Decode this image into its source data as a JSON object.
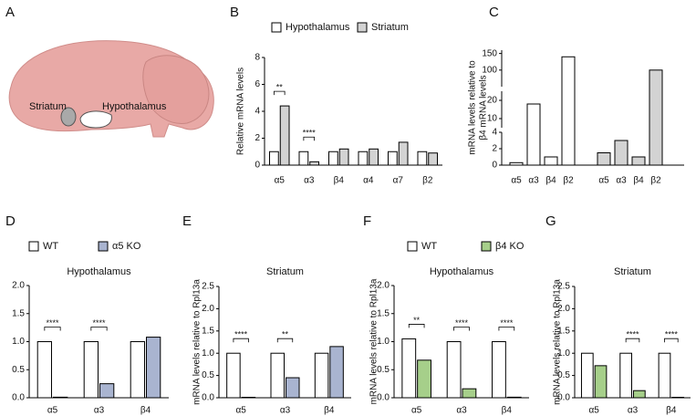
{
  "panel_labels": [
    "A",
    "B",
    "C",
    "D",
    "E",
    "F",
    "G"
  ],
  "brain_labels": [
    "Striatum",
    "Hypothalamus"
  ],
  "chart_data": [
    {
      "type": "bar",
      "ylabel": "Relative mRNA levels",
      "legend": "top",
      "categories": [
        "α5",
        "α3",
        "β4",
        "α4",
        "α7",
        "β2"
      ],
      "series": [
        {
          "name": "Hypothalamus",
          "color": "#ffffff",
          "values": [
            1,
            1,
            1,
            1,
            1,
            1
          ]
        },
        {
          "name": "Striatum",
          "color": "#d3d3d3",
          "values": [
            4.4,
            0.25,
            1.2,
            1.2,
            1.7,
            0.9
          ]
        }
      ],
      "ylim": [
        0,
        8
      ],
      "yticks": [
        0,
        2,
        4,
        6,
        8
      ],
      "significance": [
        "**",
        "****",
        null,
        null,
        null,
        null
      ]
    },
    {
      "type": "broken_bar",
      "ylabel_lines": [
        "mRNA levels relative to",
        "β4 mRNA levels"
      ],
      "categories": [
        "α5",
        "α3",
        "β4",
        "β2",
        "α5",
        "α3",
        "β4",
        "β2"
      ],
      "values": [
        0.3,
        18,
        1,
        140,
        1.5,
        3,
        1,
        100
      ],
      "colors": [
        "#ffffff",
        "#ffffff",
        "#ffffff",
        "#ffffff",
        "#d3d3d3",
        "#d3d3d3",
        "#d3d3d3",
        "#d3d3d3"
      ],
      "segments": [
        {
          "ylim": [
            0,
            4
          ],
          "yticks": [
            0,
            2,
            4
          ]
        },
        {
          "ylim": [
            5,
            25
          ],
          "yticks": [
            10,
            20
          ]
        },
        {
          "ylim": [
            50,
            160
          ],
          "yticks": [
            100,
            150
          ]
        }
      ]
    },
    {
      "type": "bar",
      "subtitle": "Hypothalamus",
      "legend": "top",
      "categories": [
        "α5",
        "α3",
        "β4"
      ],
      "series": [
        {
          "name": "WT",
          "color": "#ffffff",
          "values": [
            1,
            1,
            1
          ]
        },
        {
          "name": "α5 KO",
          "color": "#a9b4d0",
          "values": [
            0.01,
            0.25,
            1.08
          ]
        }
      ],
      "ylim": [
        0,
        2
      ],
      "yticks": [
        {
          "value": 0,
          "label": "0.0"
        },
        0.5,
        {
          "value": 1,
          "label": "1.0"
        },
        1.5,
        {
          "value": 2,
          "label": "2.0"
        }
      ],
      "significance": [
        "****",
        "****",
        null
      ]
    },
    {
      "type": "bar",
      "subtitle": "Striatum",
      "ylabel": "mRNA levels relative to Rpl13a",
      "categories": [
        "α5",
        "α3",
        "β4"
      ],
      "series": [
        {
          "color": "#ffffff",
          "values": [
            1,
            1,
            1
          ]
        },
        {
          "color": "#a9b4d0",
          "values": [
            0.01,
            0.45,
            1.15
          ]
        }
      ],
      "ylim": [
        0,
        2.5
      ],
      "yticks": [
        {
          "value": 0,
          "label": "0.0"
        },
        0.5,
        {
          "value": 1,
          "label": "1.0"
        },
        1.5,
        {
          "value": 2,
          "label": "2.0"
        },
        2.5
      ],
      "significance": [
        "****",
        "**",
        null
      ]
    },
    {
      "type": "bar",
      "subtitle": "Hypothalamus",
      "ylabel": "mRNA levels relative to Rpl13a",
      "legend": "top",
      "categories": [
        "α5",
        "α3",
        "β4"
      ],
      "series": [
        {
          "name": "WT",
          "color": "#ffffff",
          "values": [
            1.05,
            1,
            1
          ]
        },
        {
          "name": "β4 KO",
          "color": "#a6cf8a",
          "values": [
            0.67,
            0.16,
            0.01
          ]
        }
      ],
      "ylim": [
        0,
        2
      ],
      "yticks": [
        {
          "value": 0,
          "label": "0.0"
        },
        0.5,
        {
          "value": 1,
          "label": "1.0"
        },
        1.5,
        {
          "value": 2,
          "label": "2.0"
        }
      ],
      "significance": [
        "**",
        "****",
        "****"
      ]
    },
    {
      "type": "bar",
      "subtitle": "Striatum",
      "ylabel": "mRNA levels relative to Rpl13a",
      "categories": [
        "α5",
        "α3",
        "β4"
      ],
      "series": [
        {
          "color": "#ffffff",
          "values": [
            1,
            1,
            1
          ]
        },
        {
          "color": "#a6cf8a",
          "values": [
            0.72,
            0.16,
            0.01
          ]
        }
      ],
      "ylim": [
        0,
        2.5
      ],
      "yticks": [
        {
          "value": 0,
          "label": "0.0"
        },
        0.5,
        {
          "value": 1,
          "label": "1.0"
        },
        1.5,
        {
          "value": 2,
          "label": "2.0"
        },
        2.5
      ],
      "significance": [
        null,
        "****",
        "****"
      ]
    }
  ]
}
